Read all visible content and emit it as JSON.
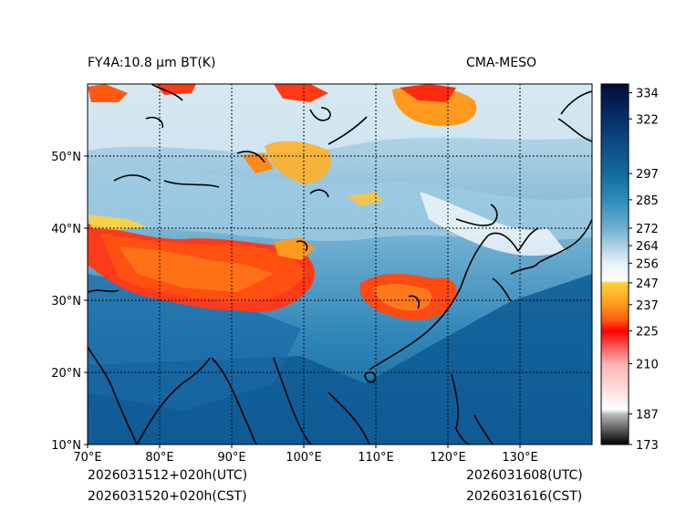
{
  "title_left": "FY4A:10.8 µm BT(K)",
  "title_right": "CMA-MESO",
  "time_utc_left": "2026031512+020h(UTC)",
  "time_cst_left": "2026031520+020h(CST)",
  "time_utc_right": "2026031608(UTC)",
  "time_cst_right": "2026031616(CST)",
  "map": {
    "lon_range": [
      70,
      140
    ],
    "lat_range": [
      10,
      60
    ],
    "lon_ticks": [
      {
        "value": 70,
        "label": "70°E"
      },
      {
        "value": 80,
        "label": "80°E"
      },
      {
        "value": 90,
        "label": "90°E"
      },
      {
        "value": 100,
        "label": "100°E"
      },
      {
        "value": 110,
        "label": "110°E"
      },
      {
        "value": 120,
        "label": "120°E"
      },
      {
        "value": 130,
        "label": "130°E"
      }
    ],
    "lat_ticks": [
      {
        "value": 10,
        "label": "10°N"
      },
      {
        "value": 20,
        "label": "20°N"
      },
      {
        "value": 30,
        "label": "30°N"
      },
      {
        "value": 40,
        "label": "40°N"
      },
      {
        "value": 50,
        "label": "50°N"
      }
    ]
  },
  "colorbar": {
    "range": [
      173,
      338
    ],
    "ticks": [
      {
        "value": 334,
        "label": "334"
      },
      {
        "value": 322,
        "label": "322"
      },
      {
        "value": 297,
        "label": "297"
      },
      {
        "value": 285,
        "label": "285"
      },
      {
        "value": 272,
        "label": "272"
      },
      {
        "value": 264,
        "label": "264"
      },
      {
        "value": 256,
        "label": "256"
      },
      {
        "value": 247,
        "label": "247"
      },
      {
        "value": 237,
        "label": "237"
      },
      {
        "value": 225,
        "label": "225"
      },
      {
        "value": 210,
        "label": "210"
      },
      {
        "value": 187,
        "label": "187"
      },
      {
        "value": 173,
        "label": "173"
      }
    ],
    "stops": [
      {
        "value": 173,
        "color": "#000000"
      },
      {
        "value": 187,
        "color": "#bcbcbc"
      },
      {
        "value": 189,
        "color": "#ffffff"
      },
      {
        "value": 210,
        "color": "#ffb3b3"
      },
      {
        "value": 225,
        "color": "#ff0000"
      },
      {
        "value": 230,
        "color": "#ff5a10"
      },
      {
        "value": 237,
        "color": "#ff9a1e"
      },
      {
        "value": 247,
        "color": "#ffd23c"
      },
      {
        "value": 248,
        "color": "#ffffff"
      },
      {
        "value": 256,
        "color": "#e6f1f7"
      },
      {
        "value": 264,
        "color": "#aacfe2"
      },
      {
        "value": 272,
        "color": "#6fb0cf"
      },
      {
        "value": 285,
        "color": "#2f8cba"
      },
      {
        "value": 297,
        "color": "#136a9e"
      },
      {
        "value": 322,
        "color": "#08306b"
      },
      {
        "value": 338,
        "color": "#050a3a"
      }
    ]
  }
}
